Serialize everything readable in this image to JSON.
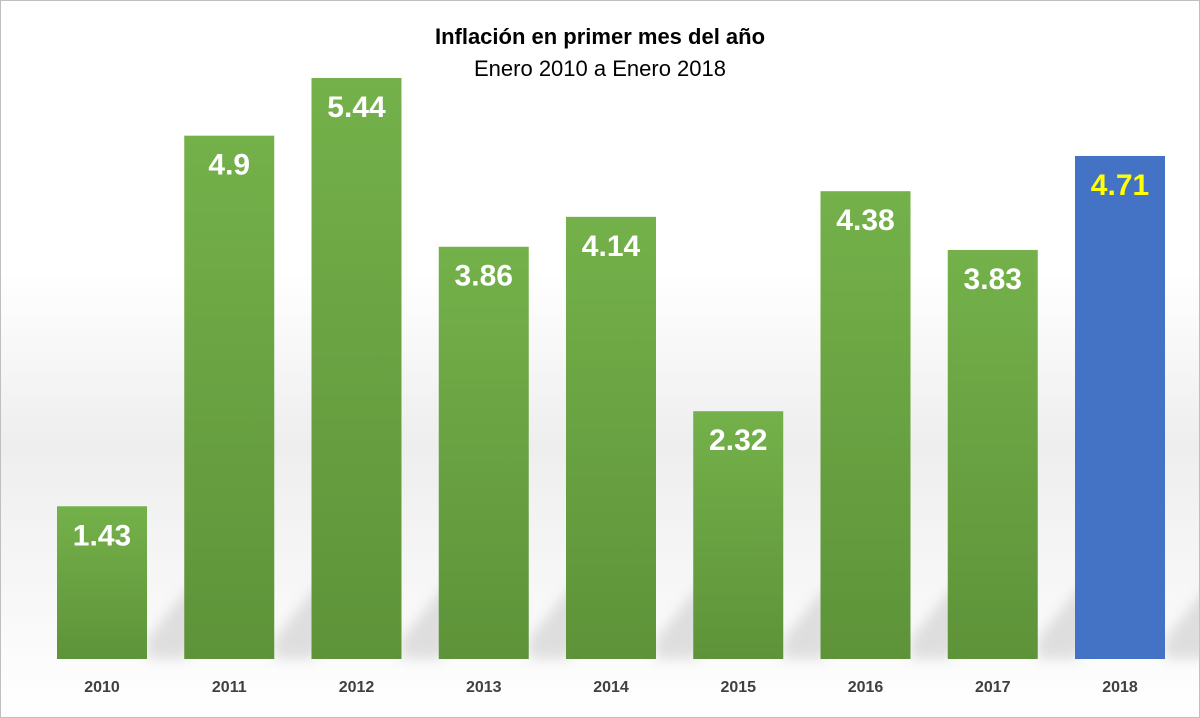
{
  "chart_data": {
    "type": "bar",
    "title": "Inflación en primer mes del año",
    "subtitle": "Enero 2010 a Enero 2018",
    "categories": [
      "2010",
      "2011",
      "2012",
      "2013",
      "2014",
      "2015",
      "2016",
      "2017",
      "2018"
    ],
    "values": [
      1.43,
      4.9,
      5.44,
      3.86,
      4.14,
      2.32,
      4.38,
      3.83,
      4.71
    ],
    "data_labels": [
      "1.43",
      "4.9",
      "5.44",
      "3.86",
      "4.14",
      "2.32",
      "4.38",
      "3.83",
      "4.71"
    ],
    "highlight_index": 8,
    "ylim": [
      0,
      5.44
    ],
    "xlabel": "",
    "ylabel": "",
    "grid": false,
    "colors": {
      "bar": "#70ad47",
      "bar_dark": "#5a8f38",
      "highlight_bar": "#4472c4",
      "label": "#ffffff",
      "highlight_label": "#ffff00",
      "shadow": "#c8c8c8"
    }
  }
}
